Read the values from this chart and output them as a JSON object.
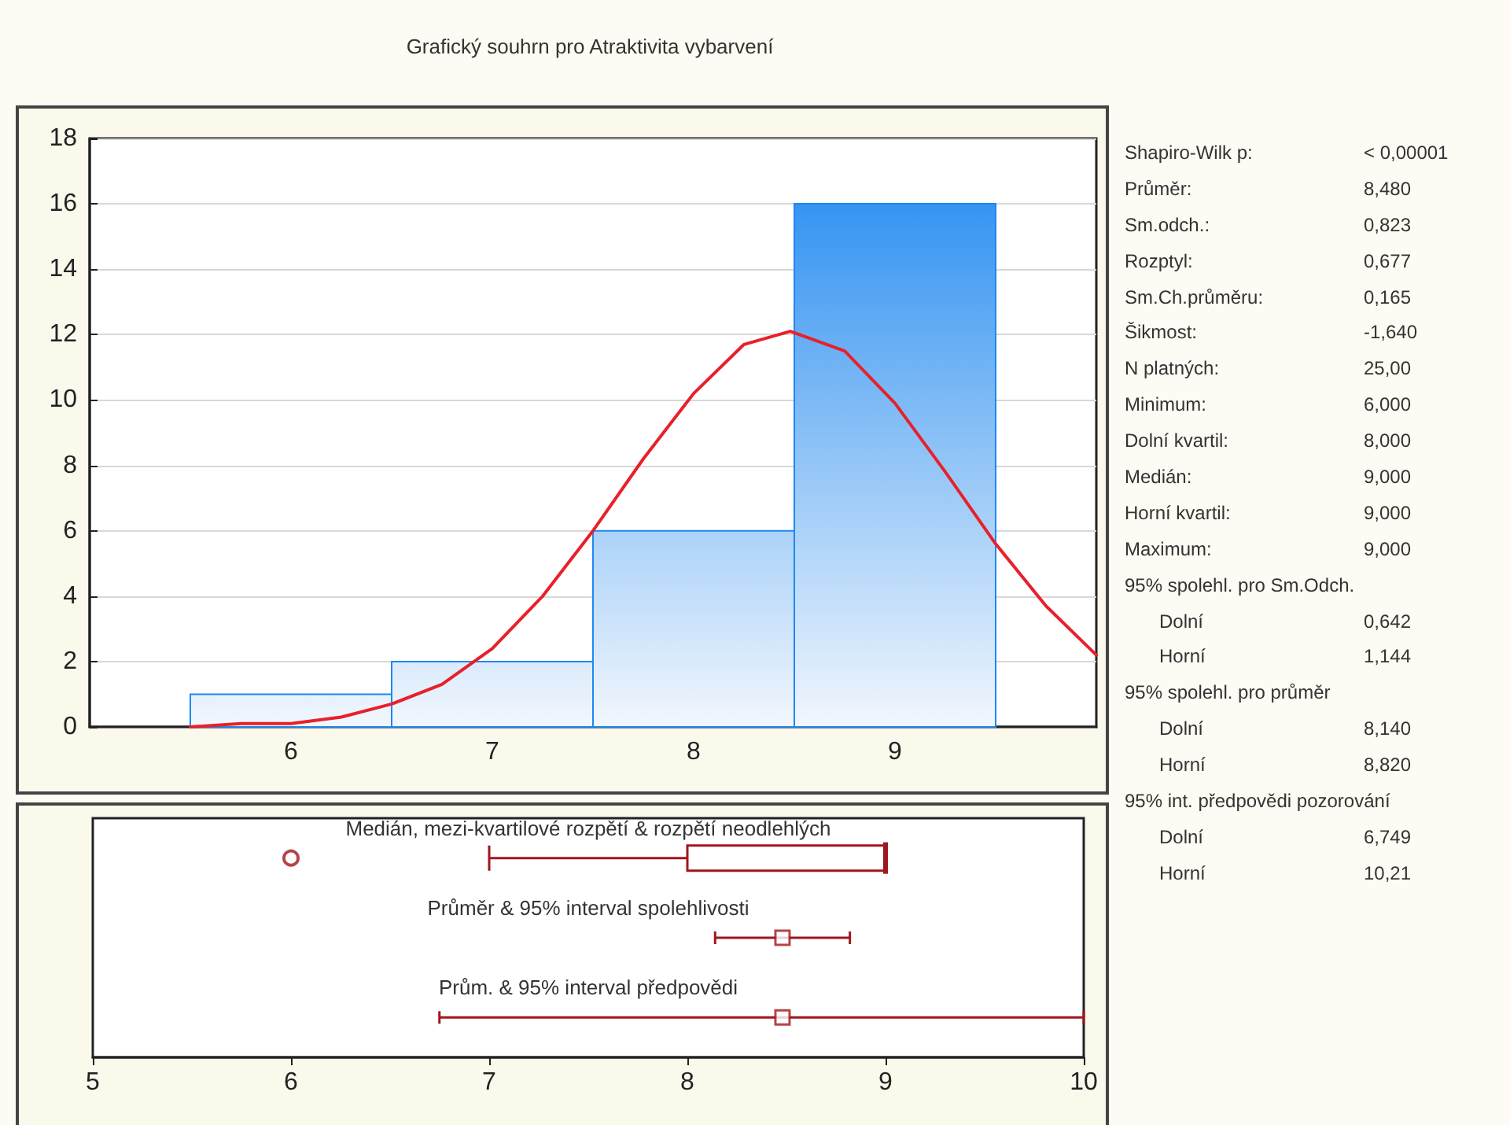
{
  "chart_data": [
    {
      "type": "histogram",
      "title": "Grafický souhrn pro Atraktivita vybarvení",
      "xlim": [
        5,
        10
      ],
      "xticks": [
        6,
        7,
        8,
        9
      ],
      "ylim": [
        0,
        18
      ],
      "yticks": [
        0,
        2,
        4,
        6,
        8,
        10,
        12,
        14,
        16,
        18
      ],
      "grid": "y",
      "series": [
        {
          "type": "histogram",
          "color": "#1e88f0",
          "bins": [
            5.5,
            6.5,
            7.5,
            8.5,
            9.5
          ],
          "values": [
            1,
            2,
            6,
            16
          ]
        },
        {
          "type": "line",
          "color": "#e8202a",
          "marker": "none",
          "x": [
            5.5,
            5.75,
            6,
            6.25,
            6.5,
            6.75,
            7,
            7.25,
            7.5,
            7.75,
            8,
            8.25,
            8.48,
            8.75,
            9,
            9.25,
            9.5,
            9.75,
            10
          ],
          "values": [
            0.0,
            0.1,
            0.1,
            0.3,
            0.7,
            1.3,
            2.4,
            4.0,
            6.0,
            8.2,
            10.2,
            11.7,
            12.1,
            11.5,
            9.9,
            7.8,
            5.6,
            3.7,
            2.2
          ]
        }
      ]
    },
    {
      "type": "box",
      "orientation": "horizontal",
      "categories": [
        "Medián, mezi-kvartilové rozpětí & rozpětí neodlehlých",
        "Průměr & 95% interval spolehlivosti",
        "Prům. & 95% interval předpovědi"
      ],
      "xlim": [
        5,
        10
      ],
      "xticks": [
        5,
        6,
        7,
        8,
        9,
        10
      ],
      "series": [
        {
          "type": "box",
          "color": "#a0161e",
          "boxes": [
            {
              "low": 7,
              "q1": 8,
              "median": 9,
              "q3": 9,
              "high": 9,
              "outliers": [
                6
              ]
            },
            null,
            null
          ]
        },
        {
          "type": "scatter",
          "color": "#a0161e",
          "marker": "square",
          "values": [
            null,
            8.48,
            8.48
          ],
          "errors": [
            null,
            [
              8.14,
              8.82
            ],
            [
              6.749,
              10
            ]
          ]
        }
      ]
    },
    {
      "type": "other",
      "annotations": [
        "Shapiro-Wilk p:\t< 0,00001",
        "Průměr:\t8,480",
        "Sm.odch.:\t0,823",
        "Rozptyl:\t0,677",
        "Sm.Ch.průměru:\t0,165",
        "Šikmost:\t-1,640",
        "N platných:\t25,00",
        "Minimum:\t6,000",
        "Dolní kvartil:\t8,000",
        "Medián:\t9,000",
        "Horní kvartil:\t9,000",
        "Maximum:\t9,000",
        "95% spolehl. pro Sm.Odch.",
        "Dolní\t0,642",
        "Horní\t1,144",
        "95% spolehl. pro průměr",
        "Dolní\t8,140",
        "Horní\t8,820",
        "95% int. předpovědi pozorování",
        "Dolní\t6,749",
        "Horní\t10,21"
      ]
    }
  ]
}
